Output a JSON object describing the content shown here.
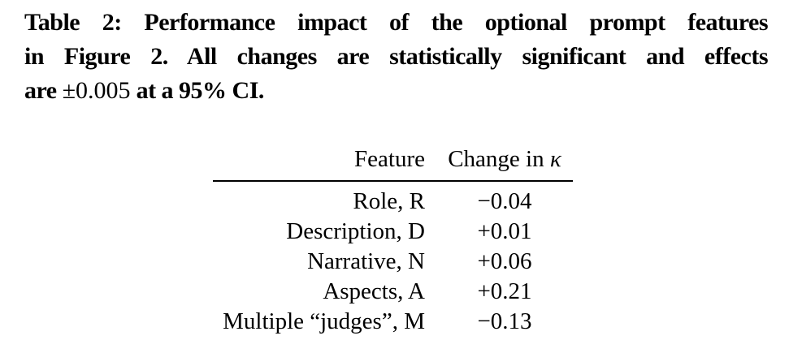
{
  "page": {
    "background_color": "#ffffff",
    "text_color": "#000000"
  },
  "caption": {
    "label": "Table 2:",
    "line1": "Table 2: Performance impact of the optional prompt features",
    "line2": "in Figure 2. All changes are statistically significant and effects",
    "line3_bold_prefix": "are ",
    "line3_math": "±0.005",
    "line3_bold_suffix": " at a 95% CI."
  },
  "table": {
    "header": {
      "feature": "Feature",
      "change_prefix": "Change in ",
      "kappa": "κ"
    },
    "rows": [
      {
        "feature": "Role, R",
        "change": "−0.04"
      },
      {
        "feature": "Description, D",
        "change": "+0.01"
      },
      {
        "feature": "Narrative, N",
        "change": "+0.06"
      },
      {
        "feature": "Aspects, A",
        "change": "+0.21"
      },
      {
        "feature": "Multiple “judges”, M",
        "change": "−0.13"
      }
    ]
  },
  "chart_data": {
    "type": "table",
    "title": "Table 2: Performance impact of the optional prompt features in Figure 2. All changes are statistically significant and effects are ±0.005 at a 95% CI.",
    "columns": [
      "Feature",
      "Change in κ"
    ],
    "rows": [
      [
        "Role, R",
        -0.04
      ],
      [
        "Description, D",
        0.01
      ],
      [
        "Narrative, N",
        0.06
      ],
      [
        "Aspects, A",
        0.21
      ],
      [
        "Multiple “judges”, M",
        -0.13
      ]
    ]
  }
}
